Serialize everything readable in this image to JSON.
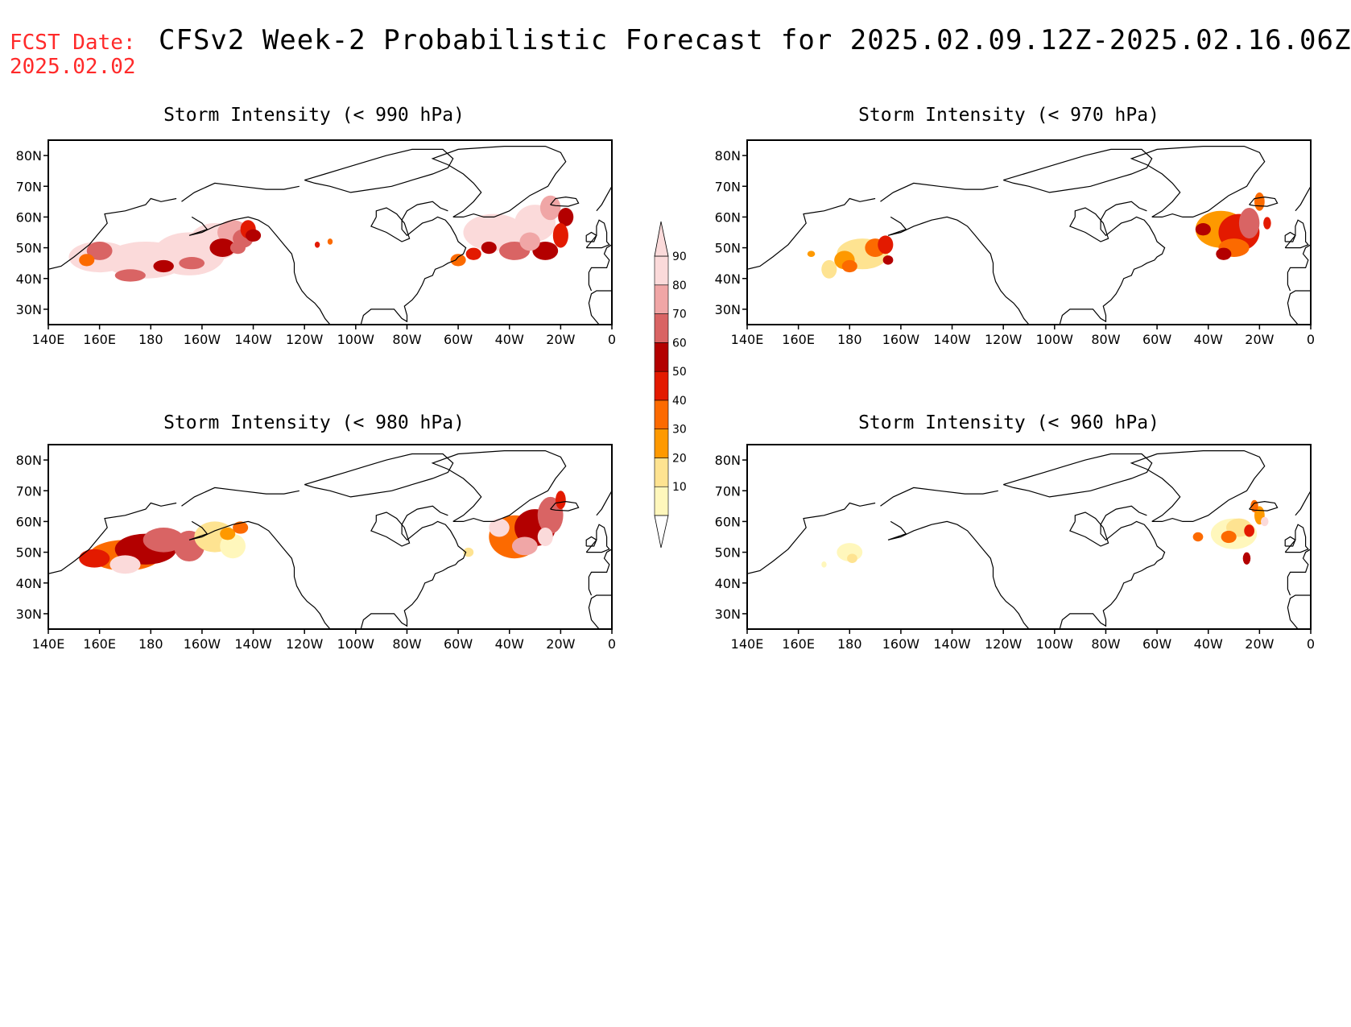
{
  "header": {
    "fcst_label": "FCST Date:",
    "fcst_date": "2025.02.02",
    "title": "CFSv2 Week-2 Probabilistic Forecast for 2025.02.09.12Z-2025.02.16.06Z"
  },
  "panels": [
    {
      "title": "Storm Intensity (< 990 hPa)"
    },
    {
      "title": "Storm Intensity (< 970 hPa)"
    },
    {
      "title": "Storm Intensity (< 980 hPa)"
    },
    {
      "title": "Storm Intensity (< 960 hPa)"
    }
  ],
  "axes": {
    "lat_labels": [
      "80N",
      "70N",
      "60N",
      "50N",
      "40N",
      "30N"
    ],
    "lon_labels": [
      "140E",
      "160E",
      "180",
      "160W",
      "140W",
      "120W",
      "100W",
      "80W",
      "60W",
      "40W",
      "20W",
      "0"
    ]
  },
  "colorbar": {
    "levels": [
      "10",
      "20",
      "30",
      "40",
      "50",
      "60",
      "70",
      "80",
      "90"
    ],
    "colors": [
      "#fff7bc",
      "#fee391",
      "#fe9900",
      "#fc6a00",
      "#e31a00",
      "#b30000",
      "#d96464",
      "#f0a6a6",
      "#fbdada"
    ]
  }
}
